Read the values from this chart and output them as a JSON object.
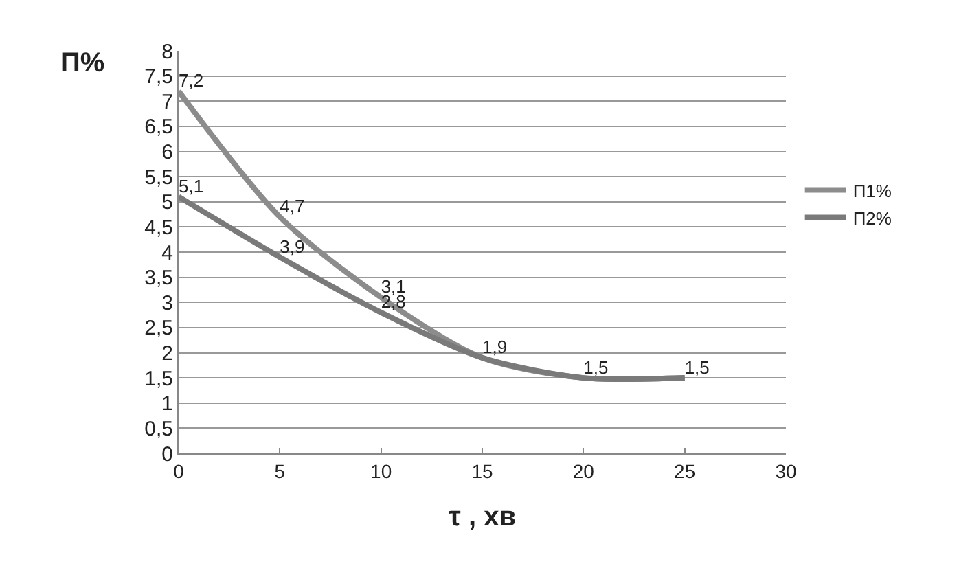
{
  "chart_data": {
    "type": "line",
    "xlabel": "τ , хв",
    "ylabel": "П%",
    "xlim": [
      0,
      30
    ],
    "xticks": [
      0,
      5,
      10,
      15,
      20,
      25,
      30
    ],
    "ylim": [
      0,
      8
    ],
    "yticks": [
      0,
      {
        "value": 0.5,
        "label": "0,5"
      },
      1,
      {
        "value": 1.5,
        "label": "1,5"
      },
      2,
      {
        "value": 2.5,
        "label": "2,5"
      },
      3,
      {
        "value": 3.5,
        "label": "3,5"
      },
      4,
      {
        "value": 4.5,
        "label": "4,5"
      },
      5,
      {
        "value": 5.5,
        "label": "5,5"
      },
      6,
      {
        "value": 6.5,
        "label": "6,5"
      },
      7,
      {
        "value": 7.5,
        "label": "7,5"
      },
      8
    ],
    "x": [
      0,
      5,
      10,
      15,
      20,
      25
    ],
    "series": [
      {
        "name": "П1%",
        "color": "#8c8c8c",
        "values": [
          7.2,
          4.7,
          3.1,
          1.9,
          1.5,
          1.5
        ],
        "value_labels": [
          "7,2",
          "4,7",
          "3,1",
          "1,9",
          "1,5",
          "1,5"
        ]
      },
      {
        "name": "П2%",
        "color": "#7a7a7a",
        "values": [
          5.1,
          3.9,
          2.8,
          1.9,
          1.5,
          1.5
        ],
        "value_labels": [
          "5,1",
          "3,9",
          "2,8",
          null,
          null,
          null
        ]
      }
    ],
    "grid": "y",
    "legend": "right",
    "marker": "none",
    "line_style": "solid"
  }
}
